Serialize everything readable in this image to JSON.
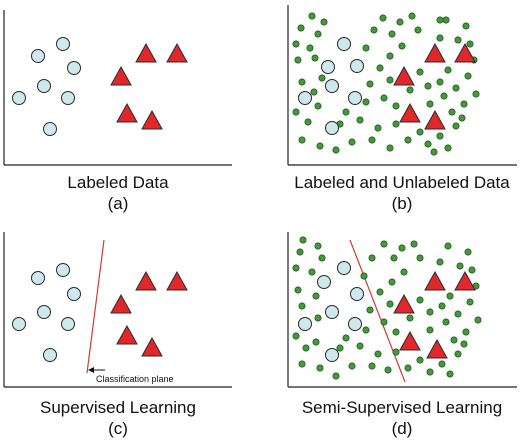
{
  "panels": [
    {
      "title": "Labeled Data",
      "letter": "(a)"
    },
    {
      "title": "Labeled and Unlabeled Data",
      "letter": "(b)"
    },
    {
      "title": "Supervised Learning",
      "letter": "(c)"
    },
    {
      "title": "Semi-Supervised Learning",
      "letter": "(d)"
    }
  ],
  "annotation": "Classification plane",
  "colors": {
    "circle_fill": "#cfe8ec",
    "triangle_fill": "#e0282a",
    "small_dot_fill": "#3f9a37",
    "line": "#d23a35",
    "axis": "#222222"
  }
}
